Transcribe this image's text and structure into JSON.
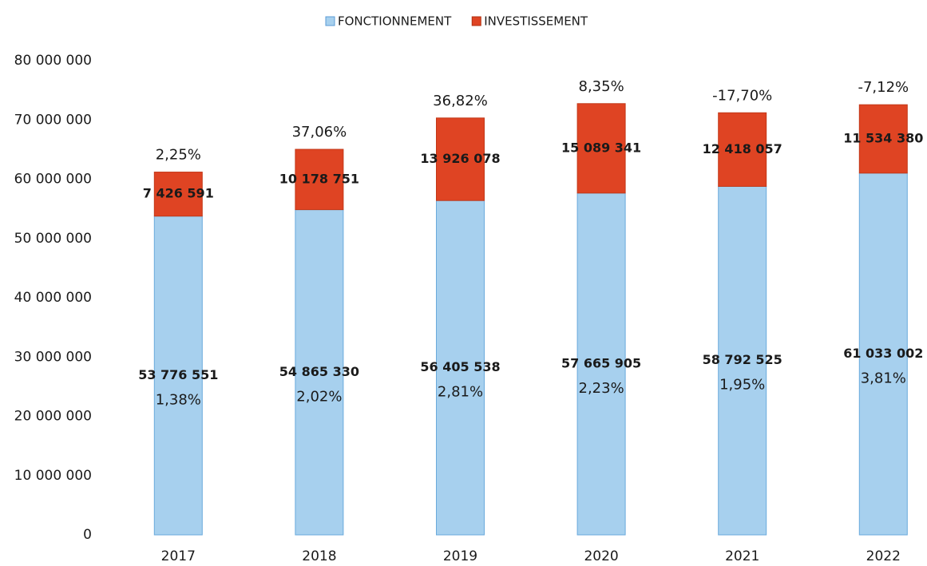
{
  "chart_data": {
    "type": "stacked_bar",
    "categories": [
      "2017",
      "2018",
      "2019",
      "2020",
      "2021",
      "2022"
    ],
    "series": [
      {
        "name": "FONCTIONNEMENT",
        "color": "#a7d0ee",
        "values": [
          53776551,
          54865330,
          56405538,
          57665905,
          58792525,
          61033002
        ],
        "value_labels": [
          "53 776 551",
          "54 865 330",
          "56 405 538",
          "57 665 905",
          "58 792 525",
          "61 033 002"
        ],
        "growth_labels": [
          "1,38%",
          "2,02%",
          "2,81%",
          "2,23%",
          "1,95%",
          "3,81%"
        ]
      },
      {
        "name": "INVESTISSEMENT",
        "color": "#df4423",
        "values": [
          7426591,
          10178751,
          13926078,
          15089341,
          12418057,
          11534380
        ],
        "value_labels": [
          "7 426 591",
          "10 178 751",
          "13 926 078",
          "15 089 341",
          "12 418 057",
          "11 534 380"
        ],
        "growth_labels": [
          "2,25%",
          "37,06%",
          "36,82%",
          "8,35%",
          "-17,70%",
          "-7,12%"
        ]
      }
    ],
    "ylim": [
      0,
      80000000
    ],
    "yticks": [
      0,
      {
        "value": 10000000,
        "label": "10 000 000"
      },
      {
        "value": 20000000,
        "label": "20 000 000"
      },
      {
        "value": 30000000,
        "label": "30 000 000"
      },
      {
        "value": 40000000,
        "label": "40 000 000"
      },
      {
        "value": 50000000,
        "label": "50 000 000"
      },
      {
        "value": 60000000,
        "label": "60 000 000"
      },
      {
        "value": 70000000,
        "label": "70 000 000"
      },
      {
        "value": 80000000,
        "label": "80 000 000"
      }
    ],
    "grid": false,
    "legend": "top"
  }
}
